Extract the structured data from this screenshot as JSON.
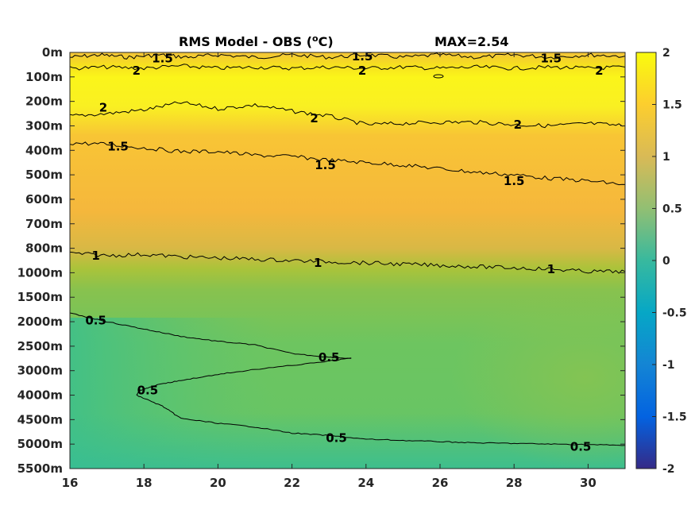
{
  "chart_data": {
    "type": "heatmap",
    "title": "RMS Model - OBS (",
    "title_sup": "o",
    "title_tail": "C)",
    "max_label": "MAX=2.54",
    "xlim": [
      16,
      31
    ],
    "x_ticks": [
      16,
      18,
      20,
      22,
      24,
      26,
      28,
      30
    ],
    "y_tick_labels": [
      "0m",
      "100m",
      "200m",
      "300m",
      "400m",
      "500m",
      "600m",
      "700m",
      "800m",
      "1000m",
      "1500m",
      "2000m",
      "2500m",
      "3000m",
      "4000m",
      "4500m",
      "5000m",
      "5500m"
    ],
    "colorbar": {
      "range": [
        -2,
        2
      ],
      "ticks": [
        "2",
        "1.5",
        "1",
        "0.5",
        "0",
        "-0.5",
        "-1",
        "-1.5",
        "-2"
      ]
    },
    "grid": false,
    "contour_levels": [
      0.5,
      1,
      1.5,
      2
    ],
    "contour_lines": [
      {
        "level": 1.5,
        "points": [
          [
            16.0,
            0.2
          ],
          [
            16.8,
            0.1
          ],
          [
            17.6,
            0.2
          ],
          [
            18.4,
            0.1
          ],
          [
            19.2,
            0.2
          ],
          [
            20,
            0.1
          ],
          [
            21,
            0.2
          ],
          [
            22,
            0.1
          ],
          [
            23,
            0.2
          ],
          [
            24,
            0.1
          ],
          [
            25,
            0.2
          ],
          [
            26,
            0.1
          ],
          [
            27,
            0.2
          ],
          [
            28,
            0.1
          ],
          [
            29,
            0.2
          ],
          [
            30,
            0.1
          ],
          [
            31,
            0.15
          ]
        ]
      },
      {
        "level": 2,
        "points": [
          [
            16.0,
            0.65
          ],
          [
            17,
            0.6
          ],
          [
            18,
            0.65
          ],
          [
            19,
            0.55
          ],
          [
            20,
            0.65
          ],
          [
            21,
            0.6
          ],
          [
            22,
            0.65
          ],
          [
            23,
            0.6
          ],
          [
            24,
            0.65
          ],
          [
            25,
            0.6
          ],
          [
            26,
            0.65
          ],
          [
            27,
            0.6
          ],
          [
            28,
            0.65
          ],
          [
            29,
            0.6
          ],
          [
            30,
            0.65
          ],
          [
            31,
            0.6
          ]
        ]
      },
      {
        "level": 2,
        "points": [
          [
            16.0,
            2.6
          ],
          [
            17,
            2.5
          ],
          [
            18,
            2.35
          ],
          [
            19,
            2.05
          ],
          [
            20,
            2.3
          ],
          [
            21,
            2.15
          ],
          [
            22,
            2.4
          ],
          [
            23,
            2.6
          ],
          [
            24,
            2.95
          ],
          [
            25,
            2.9
          ],
          [
            26,
            2.85
          ],
          [
            27,
            2.85
          ],
          [
            28,
            2.95
          ],
          [
            29,
            3.0
          ],
          [
            30,
            2.9
          ],
          [
            31,
            3.0
          ]
        ]
      },
      {
        "level": 1.5,
        "points": [
          [
            16.0,
            3.7
          ],
          [
            17,
            3.75
          ],
          [
            18,
            3.9
          ],
          [
            19,
            4.05
          ],
          [
            20,
            4.05
          ],
          [
            21,
            4.2
          ],
          [
            22,
            4.25
          ],
          [
            23,
            4.4
          ],
          [
            24,
            4.5
          ],
          [
            25,
            4.6
          ],
          [
            26,
            4.75
          ],
          [
            27,
            4.9
          ],
          [
            28,
            5.0
          ],
          [
            29,
            5.15
          ],
          [
            30,
            5.25
          ],
          [
            31,
            5.4
          ]
        ]
      },
      {
        "level": 1,
        "points": [
          [
            16.0,
            8.2
          ],
          [
            17,
            8.3
          ],
          [
            18,
            8.25
          ],
          [
            19,
            8.35
          ],
          [
            20,
            8.4
          ],
          [
            21,
            8.45
          ],
          [
            22,
            8.5
          ],
          [
            23,
            8.55
          ],
          [
            24,
            8.6
          ],
          [
            25,
            8.65
          ],
          [
            26,
            8.7
          ],
          [
            27,
            8.75
          ],
          [
            28,
            8.8
          ],
          [
            29,
            8.85
          ],
          [
            30,
            8.95
          ],
          [
            31,
            8.95
          ]
        ]
      },
      {
        "level": 0.5,
        "points": [
          [
            16.0,
            10.65
          ],
          [
            17,
            11.0
          ],
          [
            18,
            11.3
          ],
          [
            19,
            11.6
          ],
          [
            20,
            11.8
          ],
          [
            21,
            11.95
          ],
          [
            22,
            12.3
          ],
          [
            23,
            12.45
          ],
          [
            23.6,
            12.5
          ]
        ]
      },
      {
        "level": 0.5,
        "points": [
          [
            23.6,
            12.5
          ],
          [
            22.5,
            12.7
          ],
          [
            21,
            12.95
          ],
          [
            20,
            13.15
          ],
          [
            19,
            13.4
          ],
          [
            18.3,
            13.6
          ],
          [
            17.9,
            13.8
          ],
          [
            17.8,
            14.0
          ]
        ]
      },
      {
        "level": 0.5,
        "points": [
          [
            17.8,
            14.0
          ],
          [
            18.5,
            14.45
          ],
          [
            19,
            14.95
          ],
          [
            20,
            15.15
          ],
          [
            21,
            15.3
          ],
          [
            22,
            15.55
          ],
          [
            23,
            15.65
          ],
          [
            24,
            15.8
          ],
          [
            25,
            15.85
          ],
          [
            26,
            15.9
          ],
          [
            27,
            15.95
          ],
          [
            28,
            15.97
          ],
          [
            29,
            16.0
          ],
          [
            30,
            16.02
          ],
          [
            31,
            16.05
          ]
        ]
      }
    ],
    "contour_labels": [
      {
        "text": "1.5",
        "x": 18.5,
        "y": 0.25
      },
      {
        "text": "1.5",
        "x": 23.9,
        "y": 0.17
      },
      {
        "text": "1.5",
        "x": 29.0,
        "y": 0.25
      },
      {
        "text": "2",
        "x": 17.8,
        "y": 0.75
      },
      {
        "text": "2",
        "x": 23.9,
        "y": 0.75
      },
      {
        "text": "2",
        "x": 30.3,
        "y": 0.75
      },
      {
        "text": "2",
        "x": 16.9,
        "y": 2.25
      },
      {
        "text": "2",
        "x": 22.6,
        "y": 2.7
      },
      {
        "text": "2",
        "x": 28.1,
        "y": 2.95
      },
      {
        "text": "1.5",
        "x": 17.3,
        "y": 3.85
      },
      {
        "text": "1.5",
        "x": 22.9,
        "y": 4.6
      },
      {
        "text": "1.5",
        "x": 28.0,
        "y": 5.25
      },
      {
        "text": "1",
        "x": 16.7,
        "y": 8.3
      },
      {
        "text": "1",
        "x": 22.7,
        "y": 8.6
      },
      {
        "text": "1",
        "x": 29.0,
        "y": 8.85
      },
      {
        "text": "0.5",
        "x": 16.7,
        "y": 10.95
      },
      {
        "text": "0.5",
        "x": 23.0,
        "y": 12.45
      },
      {
        "text": "0.5",
        "x": 18.1,
        "y": 13.8
      },
      {
        "text": "0.5",
        "x": 23.2,
        "y": 15.75
      },
      {
        "text": "0.5",
        "x": 29.8,
        "y": 16.1
      }
    ],
    "field_colors": {
      "surface": "#f6e01e",
      "upper": "#fbf51a",
      "warm": "#f9c032",
      "orange": "#f5b73c",
      "transition": "#aac33a",
      "mid": "#82c553",
      "deep": "#62c56c",
      "abyss": "#3fbf89"
    },
    "colormap": [
      "#352a87",
      "#0363e1",
      "#1485d4",
      "#06a7c6",
      "#38b99e",
      "#92bf73",
      "#d9ba56",
      "#fcce2e",
      "#f9fb0e"
    ]
  }
}
